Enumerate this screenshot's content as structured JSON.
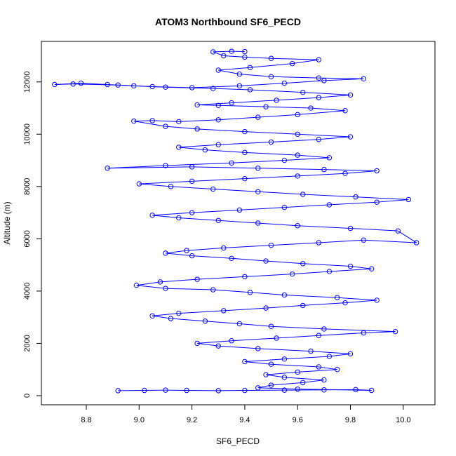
{
  "chart_data": {
    "type": "scatter",
    "title": "ATOM3 Northbound SF6_PECD",
    "xlabel": "SF6_PECD",
    "ylabel": "Altitude (m)",
    "xlim": [
      8.63,
      10.12
    ],
    "ylim": [
      -350,
      13550
    ],
    "x_ticks": [
      8.8,
      9.0,
      9.2,
      9.4,
      9.6,
      9.8,
      10.0
    ],
    "x_tick_labels": [
      "8.8",
      "9.0",
      "9.2",
      "9.4",
      "9.6",
      "9.8",
      "10.0"
    ],
    "y_ticks": [
      0,
      2000,
      4000,
      6000,
      8000,
      10000,
      12000
    ],
    "y_tick_labels": [
      "0",
      "2000",
      "4000",
      "6000",
      "8000",
      "10000",
      "12000"
    ],
    "series_color": "#0000ff",
    "marker": "open-circle",
    "connected": true,
    "grid": false,
    "legend": "none",
    "series": [
      {
        "points": [
          [
            8.92,
            190
          ],
          [
            9.02,
            200
          ],
          [
            9.1,
            210
          ],
          [
            9.18,
            200
          ],
          [
            9.3,
            190
          ],
          [
            9.4,
            200
          ],
          [
            9.55,
            210
          ],
          [
            9.7,
            220
          ],
          [
            9.82,
            230
          ],
          [
            9.88,
            200
          ],
          [
            9.6,
            250
          ],
          [
            9.45,
            300
          ],
          [
            9.5,
            400
          ],
          [
            9.62,
            500
          ],
          [
            9.7,
            600
          ],
          [
            9.55,
            700
          ],
          [
            9.48,
            800
          ],
          [
            9.6,
            900
          ],
          [
            9.75,
            1000
          ],
          [
            9.68,
            1100
          ],
          [
            9.5,
            1200
          ],
          [
            9.4,
            1300
          ],
          [
            9.55,
            1400
          ],
          [
            9.72,
            1500
          ],
          [
            9.8,
            1600
          ],
          [
            9.65,
            1700
          ],
          [
            9.45,
            1800
          ],
          [
            9.3,
            1900
          ],
          [
            9.22,
            2000
          ],
          [
            9.35,
            2100
          ],
          [
            9.52,
            2200
          ],
          [
            9.68,
            2300
          ],
          [
            9.85,
            2400
          ],
          [
            9.97,
            2450
          ],
          [
            9.7,
            2550
          ],
          [
            9.5,
            2650
          ],
          [
            9.38,
            2750
          ],
          [
            9.25,
            2850
          ],
          [
            9.12,
            2950
          ],
          [
            9.05,
            3050
          ],
          [
            9.15,
            3150
          ],
          [
            9.32,
            3250
          ],
          [
            9.48,
            3350
          ],
          [
            9.62,
            3450
          ],
          [
            9.78,
            3550
          ],
          [
            9.9,
            3650
          ],
          [
            9.75,
            3750
          ],
          [
            9.55,
            3850
          ],
          [
            9.42,
            3950
          ],
          [
            9.28,
            4050
          ],
          [
            9.1,
            4100
          ],
          [
            8.99,
            4220
          ],
          [
            9.08,
            4350
          ],
          [
            9.22,
            4450
          ],
          [
            9.4,
            4550
          ],
          [
            9.58,
            4650
          ],
          [
            9.72,
            4750
          ],
          [
            9.88,
            4850
          ],
          [
            9.8,
            4950
          ],
          [
            9.62,
            5050
          ],
          [
            9.48,
            5150
          ],
          [
            9.35,
            5250
          ],
          [
            9.2,
            5350
          ],
          [
            9.1,
            5450
          ],
          [
            9.18,
            5550
          ],
          [
            9.32,
            5650
          ],
          [
            9.5,
            5750
          ],
          [
            9.68,
            5850
          ],
          [
            9.85,
            5950
          ],
          [
            10.05,
            5850
          ],
          [
            9.98,
            6300
          ],
          [
            9.8,
            6400
          ],
          [
            9.6,
            6500
          ],
          [
            9.45,
            6600
          ],
          [
            9.3,
            6700
          ],
          [
            9.15,
            6800
          ],
          [
            9.05,
            6900
          ],
          [
            9.2,
            7000
          ],
          [
            9.38,
            7100
          ],
          [
            9.55,
            7200
          ],
          [
            9.72,
            7300
          ],
          [
            9.9,
            7400
          ],
          [
            10.02,
            7500
          ],
          [
            9.82,
            7600
          ],
          [
            9.62,
            7700
          ],
          [
            9.45,
            7800
          ],
          [
            9.28,
            7900
          ],
          [
            9.12,
            8000
          ],
          [
            9.0,
            8100
          ],
          [
            9.2,
            8200
          ],
          [
            9.4,
            8300
          ],
          [
            9.6,
            8400
          ],
          [
            9.78,
            8500
          ],
          [
            9.9,
            8600
          ],
          [
            9.7,
            8650
          ],
          [
            9.45,
            8700
          ],
          [
            9.2,
            8750
          ],
          [
            8.88,
            8700
          ],
          [
            9.1,
            8800
          ],
          [
            9.35,
            8900
          ],
          [
            9.55,
            9000
          ],
          [
            9.72,
            9100
          ],
          [
            9.6,
            9200
          ],
          [
            9.4,
            9300
          ],
          [
            9.25,
            9400
          ],
          [
            9.15,
            9500
          ],
          [
            9.3,
            9600
          ],
          [
            9.5,
            9700
          ],
          [
            9.68,
            9800
          ],
          [
            9.8,
            9900
          ],
          [
            9.6,
            10000
          ],
          [
            9.4,
            10100
          ],
          [
            9.22,
            10200
          ],
          [
            9.1,
            10300
          ],
          [
            8.98,
            10500
          ],
          [
            9.05,
            10520
          ],
          [
            9.15,
            10480
          ],
          [
            9.3,
            10550
          ],
          [
            9.45,
            10650
          ],
          [
            9.6,
            10750
          ],
          [
            9.78,
            10900
          ],
          [
            9.65,
            11000
          ],
          [
            9.48,
            11050
          ],
          [
            9.3,
            11100
          ],
          [
            9.22,
            11120
          ],
          [
            9.35,
            11200
          ],
          [
            9.52,
            11300
          ],
          [
            9.68,
            11400
          ],
          [
            9.8,
            11500
          ],
          [
            9.62,
            11600
          ],
          [
            9.42,
            11700
          ],
          [
            9.28,
            11750
          ],
          [
            9.1,
            11800
          ],
          [
            8.98,
            11850
          ],
          [
            8.88,
            11900
          ],
          [
            8.78,
            11950
          ],
          [
            8.68,
            11900
          ],
          [
            8.75,
            11920
          ],
          [
            8.92,
            11880
          ],
          [
            9.05,
            11820
          ],
          [
            9.2,
            11780
          ],
          [
            9.38,
            11850
          ],
          [
            9.55,
            11950
          ],
          [
            9.7,
            12050
          ],
          [
            9.85,
            12120
          ],
          [
            9.68,
            12150
          ],
          [
            9.5,
            12200
          ],
          [
            9.38,
            12300
          ],
          [
            9.3,
            12450
          ],
          [
            9.42,
            12550
          ],
          [
            9.58,
            12700
          ],
          [
            9.68,
            12850
          ],
          [
            9.5,
            12900
          ],
          [
            9.4,
            12950
          ],
          [
            9.32,
            13000
          ],
          [
            9.28,
            13150
          ],
          [
            9.35,
            13170
          ],
          [
            9.4,
            13160
          ]
        ]
      }
    ]
  }
}
